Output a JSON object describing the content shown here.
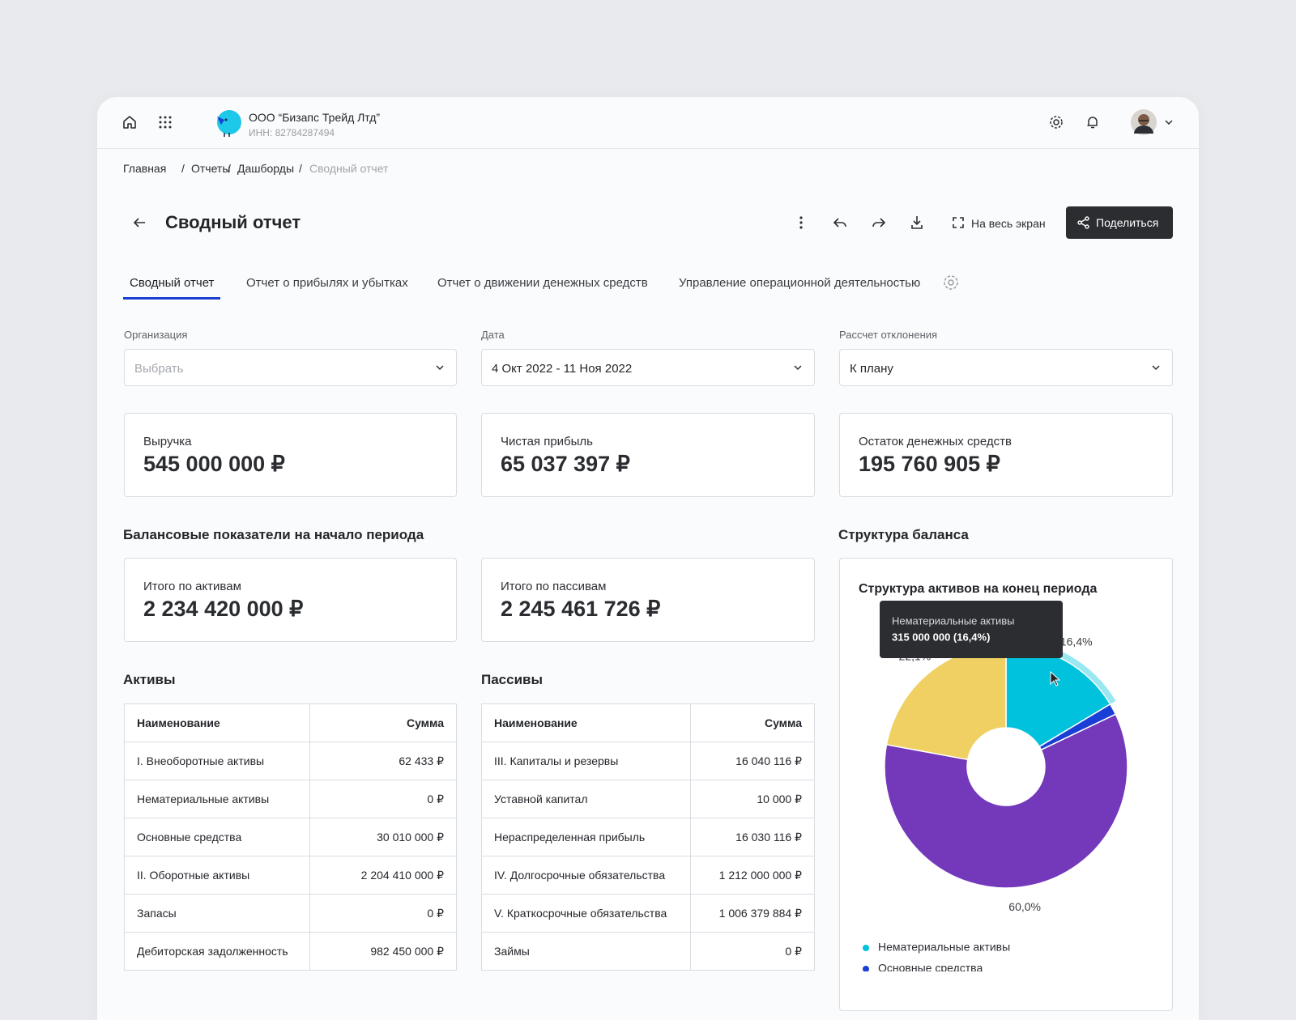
{
  "header": {
    "company": "ООО “Бизапс Трейд Лтд”",
    "inn": "ИНН: 82784287494"
  },
  "breadcrumbs": [
    "Главная",
    "Отчеты",
    "Дашборды",
    "Сводный отчет"
  ],
  "page_title": "Сводный отчет",
  "actions": {
    "fullscreen": "На весь экран",
    "share": "Поделиться"
  },
  "tabs": [
    "Сводный отчет",
    "Отчет о прибылях и убытках",
    "Отчет о движении денежных средств",
    "Управление операционной деятельностью"
  ],
  "filters": [
    {
      "label": "Организация",
      "value": "Выбрать"
    },
    {
      "label": "Дата",
      "value": "4 Окт 2022 - 11 Ноя 2022"
    },
    {
      "label": "Рассчет отклонения",
      "value": "К плану"
    }
  ],
  "kpis": [
    {
      "label": "Выручка",
      "value": "545 000 000 ₽"
    },
    {
      "label": "Чистая прибыль",
      "value": "65 037 397 ₽"
    },
    {
      "label": "Остаток денежных средств",
      "value": "195 760 905 ₽"
    }
  ],
  "balance": {
    "title": "Балансовые показатели на начало периода",
    "cards": [
      {
        "label": "Итого по активам",
        "value": "2 234 420 000 ₽"
      },
      {
        "label": "Итого по пассивам",
        "value": "2 245 461 726 ₽"
      }
    ]
  },
  "tables": [
    {
      "title": "Активы",
      "columns": [
        "Наименование",
        "Сумма"
      ],
      "rows": [
        [
          "I. Внеоборотные активы",
          "62 433 ₽"
        ],
        [
          "Нематериальные активы",
          "0 ₽"
        ],
        [
          "Основные средства",
          "30 010 000 ₽"
        ],
        [
          "II. Оборотные активы",
          "2 204 410 000 ₽"
        ],
        [
          "Запасы",
          "0 ₽"
        ],
        [
          "Дебиторская задолженность",
          "982 450 000 ₽"
        ]
      ]
    },
    {
      "title": "Пассивы",
      "columns": [
        "Наименование",
        "Сумма"
      ],
      "rows": [
        [
          "III. Капиталы и резервы",
          "16 040 116 ₽"
        ],
        [
          "Уставной капитал",
          "10 000 ₽"
        ],
        [
          "Нераспределенная прибыль",
          "16 030 116 ₽"
        ],
        [
          "IV. Долгосрочные обязательства",
          "1 212 000 000 ₽"
        ],
        [
          "V. Краткосрочные обязательства",
          "1 006 379 884 ₽"
        ],
        [
          "Займы",
          "0 ₽"
        ]
      ]
    }
  ],
  "chart_section_title": "Структура баланса",
  "chart_data": {
    "type": "pie",
    "title": "Структура активов на конец периода",
    "categories": [
      "Нематериальные активы",
      "Основные средства",
      null,
      null
    ],
    "values": [
      16.4,
      1.5,
      60.0,
      22.1
    ],
    "value_labels": [
      "16,4%",
      null,
      "60,0%",
      "22,1%"
    ],
    "colors": [
      "#00c2dc",
      "#1a3fd6",
      "#7438bb",
      "#f0d062"
    ],
    "tooltip": {
      "title": "Нематериальные активы",
      "text": "315 000 000 (16,4%)"
    }
  }
}
